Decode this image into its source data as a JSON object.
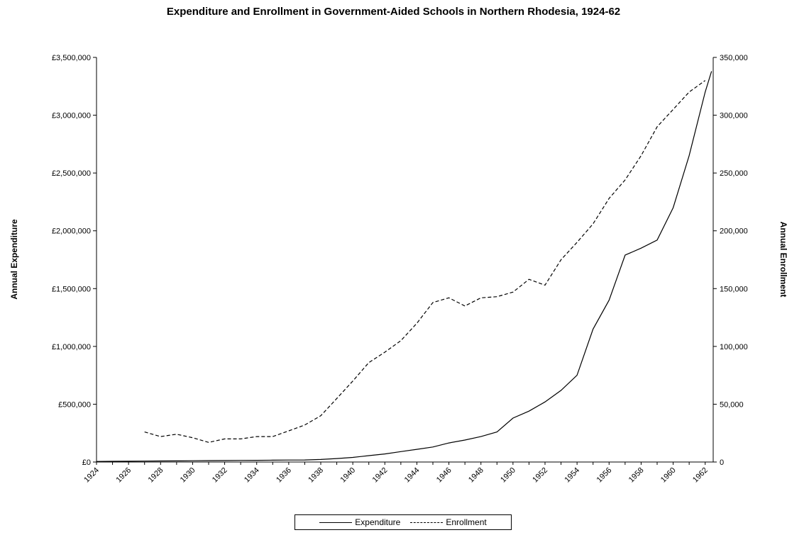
{
  "chart_data": {
    "type": "line",
    "title": "Expenditure and Enrollment in Government-Aided Schools in Northern Rhodesia, 1924-62",
    "ylabel_left": "Annual Expenditure",
    "ylabel_right": "Annual Enrollment",
    "xlim": [
      1924,
      1962.5
    ],
    "x_ticks": [
      "1924",
      "1926",
      "1928",
      "1930",
      "1932",
      "1934",
      "1936",
      "1938",
      "1940",
      "1942",
      "1944",
      "1946",
      "1948",
      "1950",
      "1952",
      "1954",
      "1956",
      "1958",
      "1960",
      "1962"
    ],
    "y_left_lim": [
      0,
      3500000
    ],
    "y_left_ticks": [
      "£0",
      "£500,000",
      "£1,000,000",
      "£1,500,000",
      "£2,000,000",
      "£2,500,000",
      "£3,000,000",
      "£3,500,000"
    ],
    "y_right_lim": [
      0,
      350000
    ],
    "y_right_ticks": [
      "0",
      "50,000",
      "100,000",
      "150,000",
      "200,000",
      "250,000",
      "300,000",
      "350,000"
    ],
    "grid": false,
    "legend_position": "bottom",
    "series": [
      {
        "name": "Expenditure",
        "axis": "left",
        "style": "solid",
        "color": "#000000",
        "points": [
          [
            1924,
            5000
          ],
          [
            1925,
            6000
          ],
          [
            1926,
            7000
          ],
          [
            1927,
            8000
          ],
          [
            1928,
            9000
          ],
          [
            1929,
            10000
          ],
          [
            1930,
            11000
          ],
          [
            1931,
            12000
          ],
          [
            1932,
            13000
          ],
          [
            1933,
            14000
          ],
          [
            1934,
            15000
          ],
          [
            1935,
            16000
          ],
          [
            1936,
            17000
          ],
          [
            1937,
            18000
          ],
          [
            1938,
            22000
          ],
          [
            1939,
            30000
          ],
          [
            1940,
            40000
          ],
          [
            1941,
            55000
          ],
          [
            1942,
            70000
          ],
          [
            1943,
            90000
          ],
          [
            1944,
            110000
          ],
          [
            1945,
            130000
          ],
          [
            1946,
            165000
          ],
          [
            1947,
            190000
          ],
          [
            1948,
            220000
          ],
          [
            1949,
            260000
          ],
          [
            1950,
            380000
          ],
          [
            1951,
            440000
          ],
          [
            1952,
            520000
          ],
          [
            1953,
            620000
          ],
          [
            1954,
            750000
          ],
          [
            1955,
            1150000
          ],
          [
            1956,
            1400000
          ],
          [
            1957,
            1790000
          ],
          [
            1958,
            1850000
          ],
          [
            1959,
            1920000
          ],
          [
            1960,
            2200000
          ],
          [
            1961,
            2650000
          ],
          [
            1962,
            3200000
          ],
          [
            1962.4,
            3380000
          ]
        ]
      },
      {
        "name": "Enrollment",
        "axis": "right",
        "style": "dashed",
        "color": "#000000",
        "points": [
          [
            1927,
            26000
          ],
          [
            1928,
            22000
          ],
          [
            1929,
            24000
          ],
          [
            1930,
            21000
          ],
          [
            1931,
            17000
          ],
          [
            1932,
            20000
          ],
          [
            1933,
            20000
          ],
          [
            1934,
            22000
          ],
          [
            1935,
            22000
          ],
          [
            1936,
            27000
          ],
          [
            1937,
            32000
          ],
          [
            1938,
            40000
          ],
          [
            1939,
            55000
          ],
          [
            1940,
            70000
          ],
          [
            1941,
            86000
          ],
          [
            1942,
            95000
          ],
          [
            1943,
            105000
          ],
          [
            1944,
            120000
          ],
          [
            1945,
            138000
          ],
          [
            1946,
            142000
          ],
          [
            1947,
            135000
          ],
          [
            1948,
            142000
          ],
          [
            1949,
            143000
          ],
          [
            1950,
            147000
          ],
          [
            1951,
            158000
          ],
          [
            1952,
            153000
          ],
          [
            1953,
            175000
          ],
          [
            1954,
            190000
          ],
          [
            1955,
            206000
          ],
          [
            1956,
            228000
          ],
          [
            1957,
            244000
          ],
          [
            1958,
            265000
          ],
          [
            1959,
            290000
          ],
          [
            1960,
            305000
          ],
          [
            1961,
            320000
          ],
          [
            1962,
            330000
          ]
        ]
      }
    ]
  },
  "legend": {
    "expenditure_label": "Expenditure",
    "enrollment_label": "Enrollment"
  }
}
